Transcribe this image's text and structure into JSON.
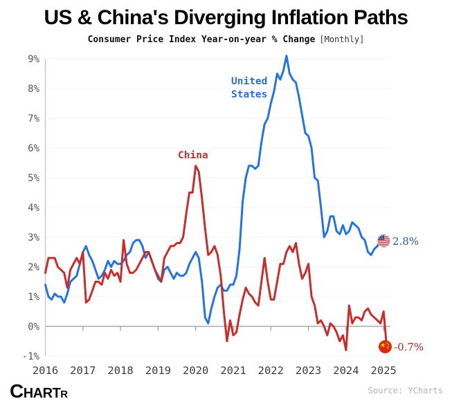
{
  "title": "US & China's Diverging Inflation Paths",
  "subtitle": "Consumer Price Index Year-on-year % Change",
  "subtitle_tag": "[Monthly]",
  "footer": {
    "logo_c": "C",
    "logo_hart": "HART",
    "logo_r": "R",
    "source": "Source: YCharts"
  },
  "colors": {
    "us_line": "#2273e6",
    "china_line": "#cc2b2b",
    "us_value_text": "#27549f",
    "china_value_text": "#bf1f1f",
    "gridline": "#f3f3f3",
    "zero_line": "#9a9a9a",
    "axis_line": "#c8c8c8"
  },
  "chart_data": {
    "type": "line",
    "title": "US & China's Diverging Inflation Paths",
    "subtitle": "Consumer Price Index Year-on-year % Change [Monthly]",
    "x_start": "2016-01",
    "x_end": "2025-02",
    "frequency": "monthly",
    "ylim": [
      -1,
      9
    ],
    "grid": "horizontal",
    "x_ticks": [
      "2016",
      "2017",
      "2018",
      "2019",
      "2020",
      "2021",
      "2022",
      "2023",
      "2024",
      "2025"
    ],
    "y_ticks": [
      "9%",
      "8%",
      "7%",
      "6%",
      "5%",
      "4%",
      "3%",
      "2%",
      "1%",
      "0%",
      "-1%"
    ],
    "source": "YCharts",
    "series": [
      {
        "name": "United States",
        "label": "United\nStates",
        "color": "#2273e6",
        "end_label": "2.8%",
        "values": [
          1.4,
          1.0,
          0.9,
          1.1,
          1.0,
          1.0,
          0.8,
          1.1,
          1.5,
          1.6,
          1.7,
          2.1,
          2.5,
          2.7,
          2.4,
          2.2,
          1.9,
          1.6,
          1.7,
          1.9,
          2.2,
          2.0,
          2.2,
          2.1,
          2.1,
          2.2,
          2.4,
          2.5,
          2.8,
          2.9,
          2.9,
          2.7,
          2.3,
          2.5,
          2.2,
          1.9,
          1.6,
          1.5,
          1.9,
          2.0,
          1.8,
          1.6,
          1.8,
          1.7,
          1.7,
          1.8,
          2.1,
          2.3,
          2.5,
          2.3,
          1.5,
          0.3,
          0.1,
          0.6,
          1.0,
          1.3,
          1.4,
          1.2,
          1.2,
          1.4,
          1.4,
          1.7,
          2.6,
          4.2,
          5.0,
          5.4,
          5.4,
          5.3,
          5.4,
          6.2,
          6.8,
          7.0,
          7.5,
          7.9,
          8.5,
          8.3,
          8.6,
          9.1,
          8.5,
          8.3,
          8.2,
          7.7,
          7.1,
          6.5,
          6.4,
          6.0,
          5.0,
          4.9,
          4.0,
          3.0,
          3.2,
          3.7,
          3.7,
          3.2,
          3.1,
          3.4,
          3.1,
          3.2,
          3.5,
          3.4,
          3.3,
          3.0,
          2.9,
          2.5,
          2.4,
          2.6,
          2.7,
          2.9,
          3.0,
          2.8
        ]
      },
      {
        "name": "China",
        "label": "China",
        "color": "#cc2b2b",
        "end_label": "-0.7%",
        "values": [
          1.8,
          2.3,
          2.3,
          2.3,
          2.0,
          1.9,
          1.8,
          1.3,
          1.9,
          2.1,
          2.3,
          2.1,
          2.5,
          0.8,
          0.9,
          1.2,
          1.5,
          1.5,
          1.4,
          1.8,
          1.6,
          1.9,
          1.7,
          1.8,
          1.5,
          2.9,
          2.1,
          1.8,
          1.8,
          1.9,
          2.1,
          2.3,
          2.5,
          2.5,
          2.2,
          1.9,
          1.7,
          1.5,
          2.3,
          2.5,
          2.7,
          2.7,
          2.8,
          2.8,
          3.0,
          3.8,
          4.5,
          4.5,
          5.4,
          5.2,
          4.3,
          3.3,
          2.4,
          2.5,
          2.7,
          2.4,
          1.7,
          0.5,
          -0.5,
          0.2,
          -0.3,
          -0.2,
          0.4,
          0.9,
          1.3,
          1.1,
          1.0,
          0.8,
          0.7,
          1.5,
          2.3,
          1.5,
          0.9,
          0.9,
          1.5,
          2.1,
          2.1,
          2.5,
          2.7,
          2.5,
          2.8,
          2.1,
          1.6,
          1.8,
          2.1,
          1.0,
          0.7,
          0.1,
          0.2,
          0.0,
          -0.3,
          0.1,
          0.0,
          -0.2,
          -0.5,
          -0.3,
          -0.8,
          0.7,
          0.1,
          0.3,
          0.3,
          0.2,
          0.5,
          0.6,
          0.4,
          0.3,
          0.2,
          0.1,
          0.5,
          -0.7
        ]
      }
    ]
  }
}
